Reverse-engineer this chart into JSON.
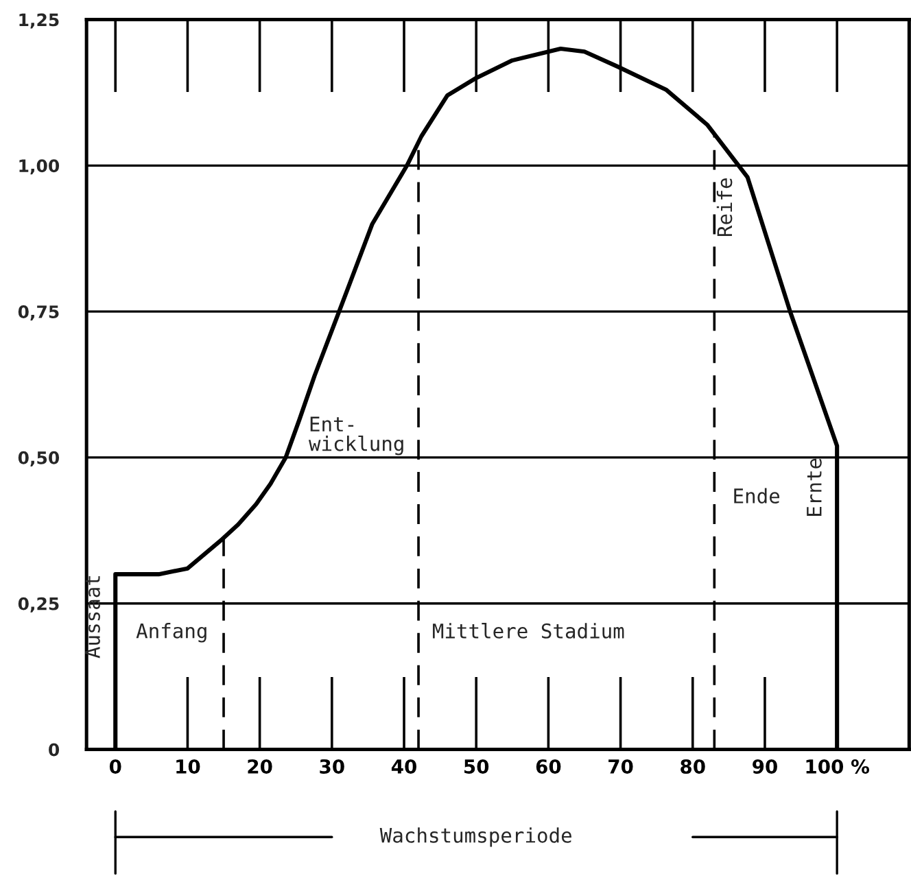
{
  "chart_data": {
    "type": "line",
    "x": [
      0,
      0,
      6,
      10,
      14.8,
      17,
      19.5,
      21.5,
      23.6,
      25.5,
      27.6,
      31,
      35.6,
      40.4,
      42.4,
      46,
      50,
      55,
      61.7,
      65,
      69.5,
      76.3,
      82,
      87.6,
      93.5,
      100,
      100,
      100
    ],
    "series": [
      {
        "color": "#000000",
        "values": [
          0,
          0.3,
          0.3,
          0.31,
          0.36,
          0.385,
          0.42,
          0.455,
          0.5,
          0.565,
          0.64,
          0.75,
          0.9,
          1.0,
          1.05,
          1.12,
          1.15,
          1.18,
          1.2,
          1.195,
          1.17,
          1.13,
          1.07,
          0.98,
          0.75,
          0.52,
          0.47,
          0
        ]
      }
    ],
    "xlim": [
      -4,
      110
    ],
    "ylim": [
      0,
      1.25
    ],
    "xticks": [
      0,
      10,
      20,
      30,
      40,
      50,
      60,
      70,
      80,
      90,
      {
        "value": 100,
        "label": "100 %"
      }
    ],
    "yticks": [
      {
        "value": 0,
        "label": "0"
      },
      {
        "value": 0.25,
        "label": "0,25"
      },
      {
        "value": 0.5,
        "label": "0,50"
      },
      {
        "value": 0.75,
        "label": "0,75"
      },
      {
        "value": 1.0,
        "label": "1,00"
      },
      {
        "value": 1.25,
        "label": "1,25"
      }
    ],
    "grid": "y",
    "legend": false,
    "marker": "none",
    "line_style": "solid",
    "ref_lines": [
      {
        "axis": "x",
        "value": 15,
        "line_style": "dashed"
      },
      {
        "axis": "x",
        "value": 42,
        "line_style": "dashed"
      },
      {
        "axis": "x",
        "value": 83,
        "line_style": "dashed"
      }
    ],
    "annotations": [
      {
        "text": "Aussaat",
        "x": 0,
        "y": 0.3
      },
      "Anfang",
      "Ent-\nwicklung",
      "Mittlere Stadium",
      {
        "text": "Reife",
        "x": 87.6,
        "y": 0.98
      },
      "Ende",
      {
        "text": "Ernte",
        "x": 100,
        "y": 0.5
      },
      "Wachstumsperiode"
    ]
  }
}
